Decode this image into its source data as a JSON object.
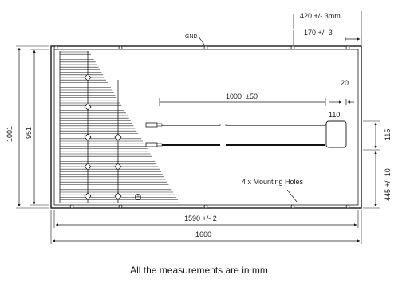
{
  "panel": {
    "gnd_label": "GND",
    "mounting_holes_label": "4 x Mounting Holes",
    "connector_box_label": "110"
  },
  "dimensions": {
    "top_outer": "420 +/- 3mm",
    "top_inner": "170 +/- 3",
    "gap_right": "20",
    "cable_length": "1000  ±50",
    "height_outer": "1001",
    "height_inner": "951",
    "right_box": "115",
    "right_lower": "445 +/- 10",
    "width_inner": "1590 +/- 2",
    "width_outer": "1660"
  },
  "caption": "All the measurements are in mm",
  "colors": {
    "line": "#1a1a1a",
    "cable": "#111111"
  }
}
